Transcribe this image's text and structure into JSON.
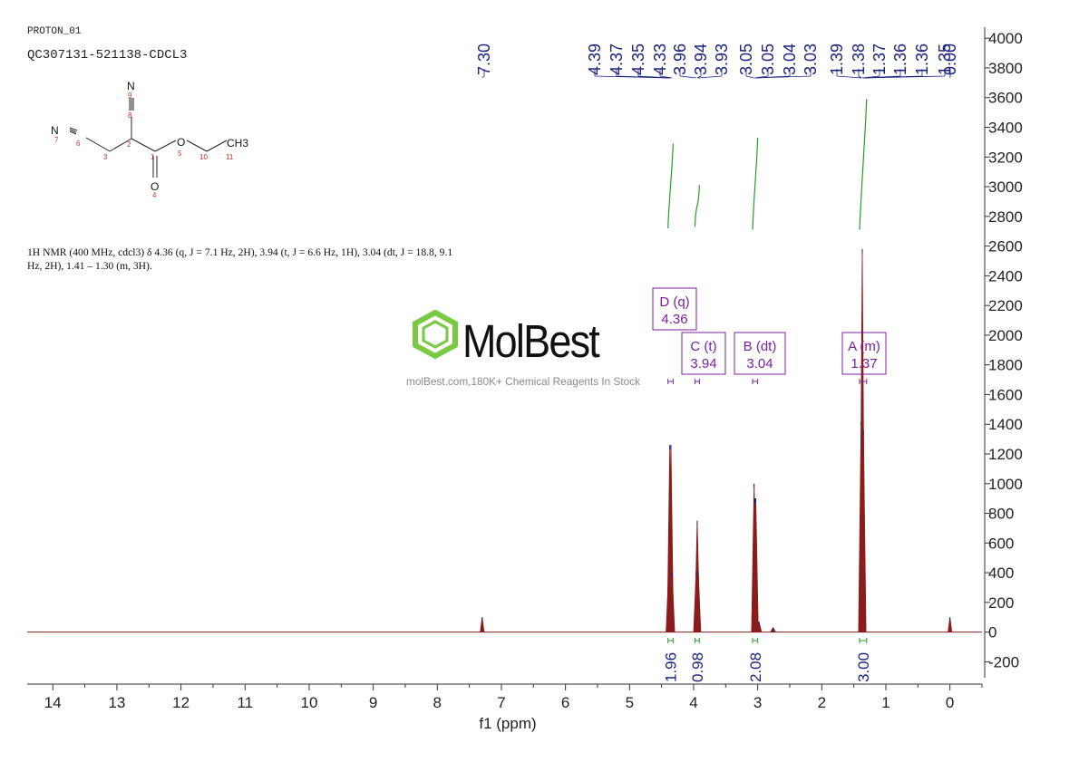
{
  "header": {
    "experiment": "PROTON_01",
    "sample": "QC307131-521138-CDCL3"
  },
  "description": {
    "text": "1H NMR (400 MHz, cdcl3) δ 4.36 (q, J = 7.1 Hz, 2H), 3.94 (t, J = 6.6 Hz, 1H), 3.04 (dt, J = 18.8, 9.1 Hz, 2H), 1.41 – 1.30 (m, 3H)."
  },
  "structure": {
    "atoms": [
      "N",
      "9",
      "8",
      "N",
      "7",
      "6",
      "3",
      "2",
      "1",
      "O",
      "5",
      "10",
      "11",
      "CH3",
      "O",
      "4"
    ]
  },
  "watermark": {
    "brand": "MolBest",
    "tagline": "molBest.com,180K+ Chemical Reagents In Stock"
  },
  "colors": {
    "spectrum": "#8b1c1c",
    "integral_curve": "#2a9a2a",
    "peak_label": "#1a237e",
    "multiplet_box": "#7b1fa2",
    "brand_green": "#7ac943"
  },
  "chart_data": {
    "type": "line",
    "title": "",
    "xlabel": "f1 (ppm)",
    "ylabel": "",
    "xlim": [
      14.4,
      -0.5
    ],
    "ylim": [
      -350,
      4050
    ],
    "x_reversed": true,
    "x_ticks": [
      14,
      13,
      12,
      11,
      10,
      9,
      8,
      7,
      6,
      5,
      4,
      3,
      2,
      1,
      0
    ],
    "y_ticks": [
      -200,
      0,
      200,
      400,
      600,
      800,
      1000,
      1200,
      1400,
      1600,
      1800,
      2000,
      2200,
      2400,
      2600,
      2800,
      3000,
      3200,
      3400,
      3600,
      3800,
      4000
    ],
    "y_axis_side": "right",
    "peaks": [
      {
        "ppm": 7.3,
        "height": 100,
        "width": 0.003
      },
      {
        "ppm": 4.39,
        "height": 400,
        "width": 0.004
      },
      {
        "ppm": 4.372,
        "height": 1260,
        "width": 0.004
      },
      {
        "ppm": 4.354,
        "height": 1260,
        "width": 0.004
      },
      {
        "ppm": 4.336,
        "height": 400,
        "width": 0.004
      },
      {
        "ppm": 3.96,
        "height": 410,
        "width": 0.004
      },
      {
        "ppm": 3.944,
        "height": 750,
        "width": 0.004
      },
      {
        "ppm": 3.928,
        "height": 410,
        "width": 0.004
      },
      {
        "ppm": 3.056,
        "height": 1000,
        "width": 0.004
      },
      {
        "ppm": 3.049,
        "height": 900,
        "width": 0.004
      },
      {
        "ppm": 3.038,
        "height": 900,
        "width": 0.004
      },
      {
        "ppm": 3.03,
        "height": 900,
        "width": 0.004
      },
      {
        "ppm": 2.98,
        "height": 70,
        "width": 0.004
      },
      {
        "ppm": 2.76,
        "height": 30,
        "width": 0.004
      },
      {
        "ppm": 1.386,
        "height": 1420,
        "width": 0.004
      },
      {
        "ppm": 1.368,
        "height": 2580,
        "width": 0.004
      },
      {
        "ppm": 1.35,
        "height": 1360,
        "width": 0.004
      },
      {
        "ppm": 0.0,
        "height": 100,
        "width": 0.003
      }
    ],
    "peak_labels": [
      {
        "text": "7.30",
        "ppm": 7.3
      },
      {
        "text": "4.39",
        "ppm": 4.39
      },
      {
        "text": "4.37",
        "ppm": 4.372
      },
      {
        "text": "4.35",
        "ppm": 4.354
      },
      {
        "text": "4.33",
        "ppm": 4.336
      },
      {
        "text": "3.96",
        "ppm": 3.96
      },
      {
        "text": "3.94",
        "ppm": 3.944
      },
      {
        "text": "3.93",
        "ppm": 3.928
      },
      {
        "text": "3.05",
        "ppm": 3.056
      },
      {
        "text": "3.05",
        "ppm": 3.049
      },
      {
        "text": "3.04",
        "ppm": 3.038
      },
      {
        "text": "3.03",
        "ppm": 3.03
      },
      {
        "text": "1.39",
        "ppm": 1.386
      },
      {
        "text": "1.38",
        "ppm": 1.376
      },
      {
        "text": "1.37",
        "ppm": 1.368
      },
      {
        "text": "1.36",
        "ppm": 1.358
      },
      {
        "text": "1.36",
        "ppm": 1.352
      },
      {
        "text": "1.35",
        "ppm": 1.35
      },
      {
        "text": "0.00",
        "ppm": 0.0
      }
    ],
    "multiplets": [
      {
        "label": "D (q)",
        "shift": "4.36",
        "ppm": 4.36,
        "from": 4.4,
        "to": 4.32
      },
      {
        "label": "C (t)",
        "shift": "3.94",
        "ppm": 3.94,
        "from": 3.98,
        "to": 3.91
      },
      {
        "label": "B (dt)",
        "shift": "3.04",
        "ppm": 3.04,
        "from": 3.08,
        "to": 3.0
      },
      {
        "label": "A (m)",
        "shift": "1.37",
        "ppm": 1.37,
        "from": 1.41,
        "to": 1.3
      }
    ],
    "integrals": [
      {
        "value": "1.96",
        "from": 4.4,
        "to": 4.32,
        "curve_low": 2720,
        "curve_high": 3290
      },
      {
        "value": "0.98",
        "from": 3.98,
        "to": 3.91,
        "curve_low": 2730,
        "curve_high": 3010
      },
      {
        "value": "2.08",
        "from": 3.08,
        "to": 3.0,
        "curve_low": 2710,
        "curve_high": 3330
      },
      {
        "value": "3.00",
        "from": 1.41,
        "to": 1.3,
        "curve_low": 2710,
        "curve_high": 3590
      }
    ]
  }
}
